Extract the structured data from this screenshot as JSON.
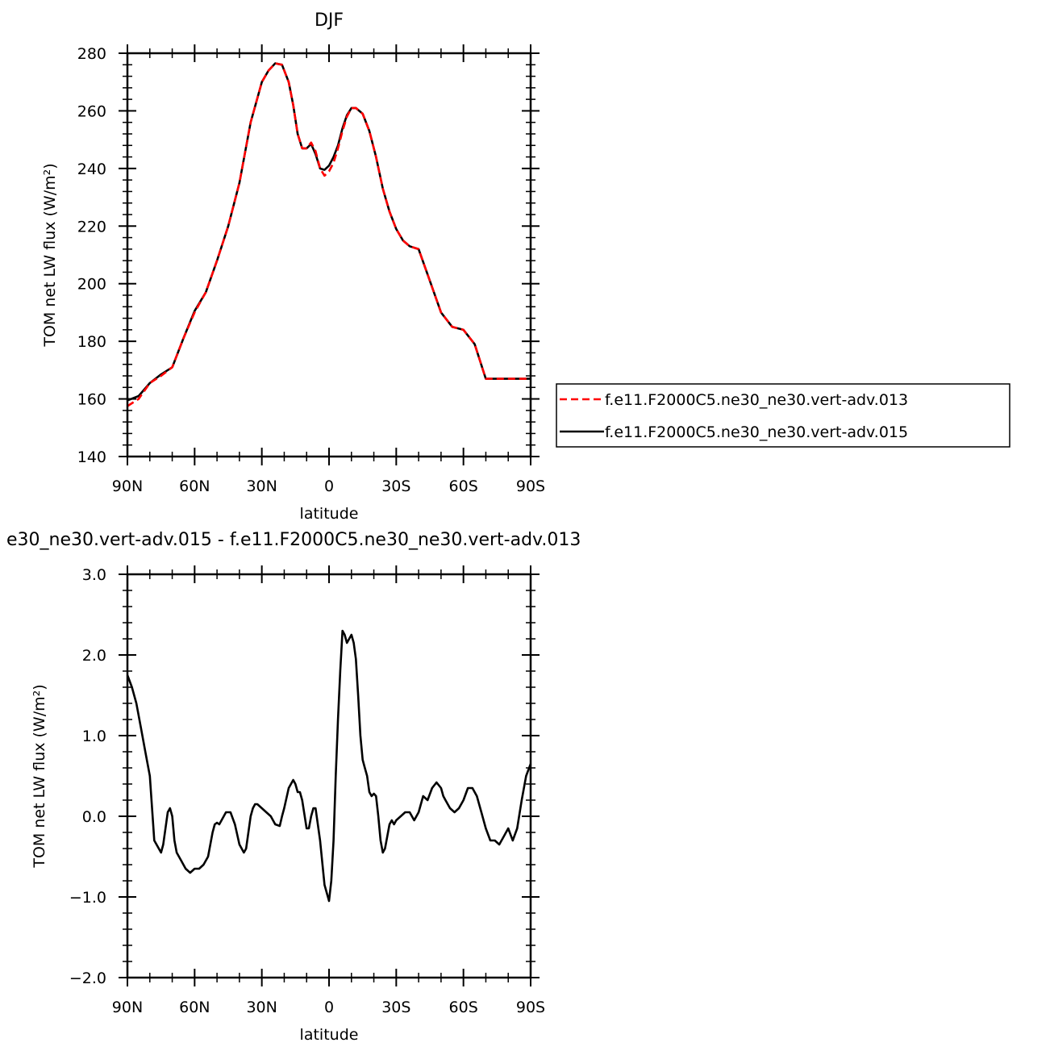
{
  "chart_data": [
    {
      "type": "line",
      "title": "DJF",
      "xlabel": "latitude",
      "ylabel": "TOM net LW flux (W/m²)",
      "xlim": [
        -90,
        90
      ],
      "ylim": [
        140,
        280
      ],
      "x_ticks": [
        "90N",
        "60N",
        "30N",
        "0",
        "30S",
        "60S",
        "90S"
      ],
      "y_ticks": [
        "140",
        "160",
        "180",
        "200",
        "220",
        "240",
        "260",
        "280"
      ],
      "legend_position": "right",
      "series": [
        {
          "name": "f.e11.F2000C5.ne30_ne30.vert-adv.013",
          "color": "#ff0000",
          "style": "dashed",
          "x": [
            -90,
            -85,
            -80,
            -75,
            -70,
            -65,
            -60,
            -55,
            -50,
            -45,
            -40,
            -35,
            -30,
            -27,
            -24,
            -21,
            -18,
            -16,
            -14,
            -12,
            -10,
            -8,
            -6,
            -4,
            -2,
            0,
            2,
            4,
            6,
            8,
            10,
            12,
            15,
            18,
            21,
            24,
            27,
            30,
            33,
            36,
            40,
            45,
            50,
            55,
            60,
            65,
            70,
            75,
            80,
            85,
            90
          ],
          "y": [
            157.5,
            160,
            165.5,
            168,
            171,
            181,
            190,
            197,
            208,
            220,
            235,
            256,
            270,
            274,
            276.5,
            276,
            270,
            262,
            252,
            247,
            247,
            249,
            246,
            240,
            237.5,
            239,
            242,
            247,
            253,
            258,
            261,
            261,
            259,
            253,
            244,
            233,
            225,
            219,
            215,
            213,
            212,
            201,
            190,
            185,
            184,
            179,
            167,
            167,
            167,
            167,
            167
          ]
        },
        {
          "name": "f.e11.F2000C5.ne30_ne30.vert-adv.015",
          "color": "#000000",
          "style": "solid",
          "x": [
            -90,
            -85,
            -80,
            -75,
            -70,
            -65,
            -60,
            -55,
            -50,
            -45,
            -40,
            -35,
            -30,
            -27,
            -24,
            -21,
            -18,
            -16,
            -14,
            -12,
            -10,
            -8,
            -6,
            -4,
            -2,
            0,
            2,
            4,
            6,
            8,
            10,
            12,
            15,
            18,
            21,
            24,
            27,
            30,
            33,
            36,
            40,
            45,
            50,
            55,
            60,
            65,
            70,
            75,
            80,
            85,
            90
          ],
          "y": [
            159.5,
            161,
            165.5,
            168.5,
            171,
            181,
            190.5,
            197,
            208,
            220,
            235,
            256,
            270,
            274,
            276.5,
            276,
            270,
            262,
            252,
            247,
            247,
            248.5,
            245,
            240,
            239.5,
            241,
            244,
            248,
            254,
            258.5,
            261,
            261,
            259,
            253,
            244,
            233,
            225,
            219,
            215,
            213,
            212,
            201,
            190,
            185,
            184,
            179,
            167,
            167,
            167,
            167,
            167
          ]
        }
      ]
    },
    {
      "type": "line",
      "title": "e30_ne30.vert-adv.015 - f.e11.F2000C5.ne30_ne30.vert-adv.013",
      "xlabel": "latitude",
      "ylabel": "TOM net LW flux (W/m²)",
      "xlim": [
        -90,
        90
      ],
      "ylim": [
        -2.0,
        3.0
      ],
      "x_ticks": [
        "90N",
        "60N",
        "30N",
        "0",
        "30S",
        "60S",
        "90S"
      ],
      "y_ticks": [
        "−2.0",
        "−1.0",
        "0.0",
        "1.0",
        "2.0",
        "3.0"
      ],
      "series": [
        {
          "color": "#000000",
          "style": "solid",
          "x": [
            -90,
            -88,
            -86,
            -84,
            -82,
            -80,
            -78,
            -76,
            -75,
            -74,
            -73,
            -72,
            -71,
            -70,
            -69,
            -68,
            -66,
            -64,
            -62,
            -60,
            -58,
            -56,
            -55,
            -54,
            -53,
            -52,
            -51,
            -50,
            -49,
            -48,
            -46,
            -44,
            -42,
            -40,
            -38,
            -37,
            -36,
            -35,
            -34,
            -33,
            -32,
            -30,
            -28,
            -26,
            -24,
            -22,
            -21,
            -20,
            -18,
            -16,
            -15,
            -14,
            -13,
            -12,
            -10,
            -9,
            -8,
            -7,
            -6,
            -4,
            -2,
            0,
            1,
            2,
            3,
            4,
            5,
            6,
            7,
            8,
            9,
            10,
            11,
            12,
            13,
            14,
            15,
            16,
            17,
            18,
            19,
            20,
            21,
            22,
            23,
            24,
            25,
            26,
            27,
            28,
            29,
            30,
            32,
            34,
            36,
            38,
            40,
            42,
            44,
            46,
            48,
            50,
            51,
            52,
            53,
            54,
            56,
            58,
            60,
            62,
            64,
            66,
            68,
            70,
            72,
            74,
            76,
            78,
            80,
            82,
            84,
            86,
            88,
            90
          ],
          "y": [
            1.75,
            1.6,
            1.4,
            1.1,
            0.8,
            0.5,
            -0.3,
            -0.4,
            -0.45,
            -0.35,
            -0.15,
            0.05,
            0.1,
            0.0,
            -0.3,
            -0.45,
            -0.55,
            -0.65,
            -0.7,
            -0.65,
            -0.65,
            -0.6,
            -0.55,
            -0.5,
            -0.35,
            -0.2,
            -0.1,
            -0.08,
            -0.1,
            -0.05,
            0.05,
            0.05,
            -0.1,
            -0.35,
            -0.45,
            -0.4,
            -0.2,
            0.0,
            0.1,
            0.15,
            0.15,
            0.1,
            0.05,
            0.0,
            -0.1,
            -0.12,
            0.0,
            0.1,
            0.35,
            0.45,
            0.4,
            0.3,
            0.3,
            0.2,
            -0.15,
            -0.15,
            0.0,
            0.1,
            0.1,
            -0.3,
            -0.85,
            -1.05,
            -0.8,
            -0.3,
            0.5,
            1.2,
            1.8,
            2.3,
            2.25,
            2.15,
            2.2,
            2.25,
            2.15,
            1.95,
            1.5,
            1.0,
            0.7,
            0.6,
            0.5,
            0.3,
            0.25,
            0.28,
            0.25,
            0.0,
            -0.3,
            -0.45,
            -0.4,
            -0.25,
            -0.1,
            -0.05,
            -0.1,
            -0.05,
            0.0,
            0.05,
            0.05,
            -0.05,
            0.05,
            0.25,
            0.2,
            0.35,
            0.42,
            0.35,
            0.25,
            0.2,
            0.15,
            0.1,
            0.05,
            0.1,
            0.2,
            0.35,
            0.35,
            0.25,
            0.05,
            -0.15,
            -0.3,
            -0.3,
            -0.35,
            -0.25,
            -0.15,
            -0.3,
            -0.15,
            0.2,
            0.5,
            0.65
          ]
        }
      ]
    }
  ]
}
